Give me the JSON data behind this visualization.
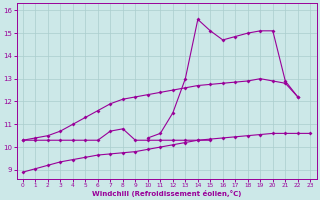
{
  "bg_color": "#cce8e8",
  "grid_color": "#aacece",
  "line_color": "#990099",
  "xlabel": "Windchill (Refroidissement éolien,°C)",
  "x_ticks": [
    0,
    1,
    2,
    3,
    4,
    5,
    6,
    7,
    8,
    9,
    10,
    11,
    12,
    13,
    14,
    15,
    16,
    17,
    18,
    19,
    20,
    21,
    22,
    23
  ],
  "ylim": [
    8.6,
    16.3
  ],
  "yticks": [
    9,
    10,
    11,
    12,
    13,
    14,
    15,
    16
  ],
  "line1_y": [
    8.9,
    9.05,
    9.2,
    9.35,
    9.45,
    9.55,
    9.65,
    9.7,
    9.75,
    9.8,
    9.9,
    10.0,
    10.1,
    10.2,
    10.3,
    10.35,
    10.4,
    10.45,
    10.5,
    10.55,
    10.6,
    10.6,
    10.6,
    10.6
  ],
  "line2_y": [
    10.3,
    10.3,
    10.3,
    10.3,
    10.3,
    10.3,
    10.3,
    10.7,
    10.8,
    10.3,
    10.3,
    10.3,
    10.3,
    10.3,
    10.3,
    10.3,
    null,
    null,
    null,
    null,
    null,
    null,
    null,
    null
  ],
  "line3_y": [
    10.3,
    10.4,
    10.5,
    10.7,
    11.0,
    11.3,
    11.6,
    11.9,
    12.1,
    12.2,
    12.3,
    12.4,
    12.5,
    12.6,
    12.7,
    12.75,
    12.8,
    12.85,
    12.9,
    13.0,
    12.9,
    12.8,
    12.2,
    null
  ],
  "line4_y": [
    null,
    null,
    null,
    null,
    null,
    null,
    null,
    null,
    null,
    null,
    10.4,
    10.6,
    11.5,
    13.0,
    15.6,
    15.1,
    14.7,
    14.85,
    15.0,
    15.1,
    15.1,
    12.9,
    12.2,
    null
  ]
}
